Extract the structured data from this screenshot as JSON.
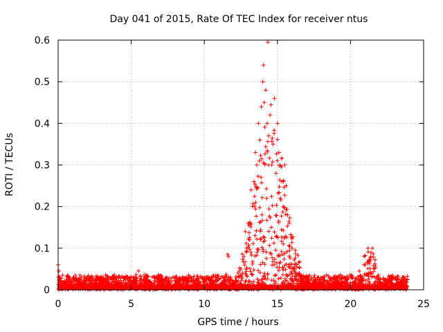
{
  "chart_data": {
    "type": "scatter",
    "title": "Day 041 of 2015, Rate Of TEC Index for receiver ntus",
    "xlabel": "GPS time / hours",
    "ylabel": "ROTI / TECUs",
    "xlim": [
      0,
      25
    ],
    "ylim": [
      0,
      0.6
    ],
    "xticks": [
      0,
      5,
      10,
      15,
      20,
      25
    ],
    "yticks": [
      0,
      0.1,
      0.2,
      0.3,
      0.4,
      0.5,
      0.6
    ],
    "xtick_labels": [
      "0",
      "5",
      "10",
      "15",
      "20",
      "25"
    ],
    "ytick_labels": [
      "0",
      "0.1",
      "0.2",
      "0.3",
      "0.4",
      "0.5",
      "0.6"
    ],
    "grid": true,
    "marker": "+",
    "color": "#ff0000",
    "series": [
      {
        "name": "ROTI",
        "points": [
          [
            0.0,
            0.06
          ],
          [
            0.05,
            0.045
          ],
          [
            0.1,
            0.03
          ],
          [
            0.2,
            0.02
          ],
          [
            0.3,
            0.035
          ],
          [
            0.5,
            0.015
          ],
          [
            0.7,
            0.03
          ],
          [
            0.9,
            0.02
          ],
          [
            1.0,
            0.012
          ],
          [
            1.2,
            0.025
          ],
          [
            1.5,
            0.035
          ],
          [
            1.8,
            0.02
          ],
          [
            2.0,
            0.03
          ],
          [
            2.3,
            0.015
          ],
          [
            2.6,
            0.033
          ],
          [
            2.9,
            0.025
          ],
          [
            3.1,
            0.02
          ],
          [
            3.4,
            0.03
          ],
          [
            3.7,
            0.018
          ],
          [
            4.0,
            0.028
          ],
          [
            4.3,
            0.015
          ],
          [
            4.6,
            0.025
          ],
          [
            5.0,
            0.02
          ],
          [
            5.3,
            0.03
          ],
          [
            5.5,
            0.045
          ],
          [
            5.7,
            0.025
          ],
          [
            6.0,
            0.015
          ],
          [
            6.3,
            0.02
          ],
          [
            6.6,
            0.01
          ],
          [
            7.0,
            0.018
          ],
          [
            7.3,
            0.012
          ],
          [
            7.6,
            0.02
          ],
          [
            8.0,
            0.03
          ],
          [
            8.3,
            0.022
          ],
          [
            8.6,
            0.015
          ],
          [
            9.0,
            0.02
          ],
          [
            9.3,
            0.012
          ],
          [
            9.6,
            0.018
          ],
          [
            10.0,
            0.02
          ],
          [
            10.3,
            0.025
          ],
          [
            10.6,
            0.03
          ],
          [
            11.0,
            0.025
          ],
          [
            11.3,
            0.03
          ],
          [
            11.6,
            0.085
          ],
          [
            11.65,
            0.08
          ],
          [
            11.8,
            0.03
          ],
          [
            12.0,
            0.02
          ],
          [
            12.3,
            0.04
          ],
          [
            12.5,
            0.05
          ],
          [
            12.7,
            0.08
          ],
          [
            12.8,
            0.14
          ],
          [
            12.9,
            0.1
          ],
          [
            13.0,
            0.16
          ],
          [
            13.1,
            0.12
          ],
          [
            13.2,
            0.24
          ],
          [
            13.3,
            0.2
          ],
          [
            13.4,
            0.26
          ],
          [
            13.5,
            0.33
          ],
          [
            13.6,
            0.3
          ],
          [
            13.7,
            0.4
          ],
          [
            13.8,
            0.36
          ],
          [
            13.9,
            0.44
          ],
          [
            14.0,
            0.5
          ],
          [
            14.05,
            0.54
          ],
          [
            14.1,
            0.45
          ],
          [
            14.2,
            0.48
          ],
          [
            14.3,
            0.4
          ],
          [
            14.35,
            0.595
          ],
          [
            14.4,
            0.37
          ],
          [
            14.5,
            0.42
          ],
          [
            14.6,
            0.3
          ],
          [
            14.7,
            0.35
          ],
          [
            14.8,
            0.46
          ],
          [
            14.9,
            0.28
          ],
          [
            15.0,
            0.4
          ],
          [
            15.1,
            0.33
          ],
          [
            15.2,
            0.22
          ],
          [
            15.3,
            0.26
          ],
          [
            15.4,
            0.2
          ],
          [
            15.5,
            0.3
          ],
          [
            15.6,
            0.25
          ],
          [
            15.7,
            0.18
          ],
          [
            15.8,
            0.16
          ],
          [
            16.0,
            0.1
          ],
          [
            16.2,
            0.06
          ],
          [
            16.5,
            0.04
          ],
          [
            16.8,
            0.03
          ],
          [
            17.0,
            0.02
          ],
          [
            17.3,
            0.025
          ],
          [
            17.6,
            0.02
          ],
          [
            18.0,
            0.015
          ],
          [
            18.4,
            0.02
          ],
          [
            18.8,
            0.012
          ],
          [
            19.2,
            0.018
          ],
          [
            19.6,
            0.015
          ],
          [
            20.0,
            0.01
          ],
          [
            20.3,
            0.02
          ],
          [
            20.6,
            0.045
          ],
          [
            20.8,
            0.03
          ],
          [
            21.0,
            0.06
          ],
          [
            21.2,
            0.1
          ],
          [
            21.3,
            0.07
          ],
          [
            21.4,
            0.09
          ],
          [
            21.5,
            0.1
          ],
          [
            21.6,
            0.05
          ],
          [
            21.8,
            0.03
          ],
          [
            22.0,
            0.02
          ],
          [
            22.4,
            0.015
          ],
          [
            22.8,
            0.025
          ],
          [
            23.2,
            0.018
          ],
          [
            23.6,
            0.012
          ]
        ]
      }
    ]
  }
}
